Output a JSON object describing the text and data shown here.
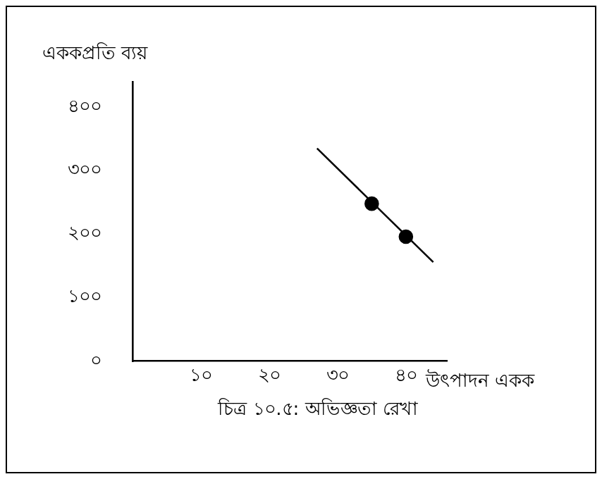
{
  "chart_data": {
    "type": "line",
    "ylabel": "এককপ্রতি ব্যয়",
    "xlabel": "উৎপাদন একক",
    "annotations": [
      "চিত্র ১০.৫: অভিজ্ঞতা রেখা"
    ],
    "xlim": [
      0,
      46
    ],
    "xticks": [
      {
        "value": 10,
        "label": "১০"
      },
      {
        "value": 20,
        "label": "২০"
      },
      {
        "value": 30,
        "label": "৩০"
      },
      {
        "value": 40,
        "label": "৪০"
      }
    ],
    "ylim": [
      0,
      440
    ],
    "yticks": [
      {
        "value": 0,
        "label": "০"
      },
      {
        "value": 100,
        "label": "১০০"
      },
      {
        "value": 200,
        "label": "২০০"
      },
      {
        "value": 300,
        "label": "৩০০"
      },
      {
        "value": 400,
        "label": "৪০০"
      }
    ],
    "grid": false,
    "legend": false,
    "series": [
      {
        "x": [
          27,
          44
        ],
        "values": [
          335,
          156
        ],
        "color": "#000000",
        "marker": "none",
        "line_style": "solid"
      },
      {
        "type": "scatter",
        "x": [
          35,
          40
        ],
        "values": [
          248,
          196
        ],
        "color": "#000000",
        "marker": "circle"
      }
    ]
  }
}
